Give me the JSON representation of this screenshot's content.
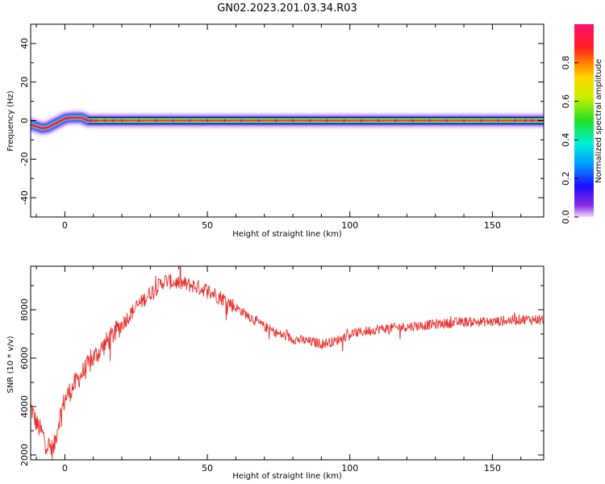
{
  "title": "GN02.2023.201.03.34.R03",
  "chart_data": [
    {
      "type": "heatmap",
      "xlabel": "Height of straight line (km)",
      "ylabel": "Frequency (Hz)",
      "xlim": [
        -12,
        168
      ],
      "ylim": [
        -50,
        50
      ],
      "xticks": [
        0,
        50,
        100,
        150
      ],
      "yticks": [
        -40,
        -20,
        0,
        20,
        40
      ],
      "colorbar": {
        "label": "Normalized spectral amplitude",
        "range": [
          0,
          1
        ],
        "ticks": [
          "0.0",
          "0.2",
          "0.4",
          "0.6",
          "0.8"
        ]
      },
      "ridge": {
        "x": [
          -12,
          -10,
          -8,
          -6,
          -4,
          -2,
          0,
          2,
          4,
          6,
          8,
          10,
          20,
          40,
          60,
          80,
          100,
          120,
          140,
          160,
          168
        ],
        "y": [
          -2,
          -3,
          -4,
          -3.5,
          -2,
          -0.5,
          1,
          1.5,
          1.5,
          1.5,
          0,
          0,
          0,
          0,
          0,
          0,
          0,
          0,
          0,
          0,
          0
        ]
      }
    },
    {
      "type": "line",
      "xlabel": "Height of straight line (km)",
      "ylabel": "SNR (10 * v/v)",
      "xlim": [
        -12,
        168
      ],
      "ylim": [
        1800,
        9800
      ],
      "xticks": [
        0,
        50,
        100,
        150
      ],
      "yticks": [
        2000,
        4000,
        6000,
        8000
      ],
      "color": "#e8312f",
      "x": [
        -12,
        -10,
        -8,
        -6,
        -4,
        -2,
        0,
        5,
        10,
        15,
        20,
        25,
        30,
        35,
        40,
        45,
        50,
        55,
        60,
        65,
        70,
        75,
        80,
        85,
        90,
        95,
        100,
        110,
        120,
        130,
        140,
        150,
        160,
        168
      ],
      "y": [
        4000,
        3300,
        2900,
        2400,
        2200,
        3500,
        4300,
        5200,
        6000,
        6700,
        7400,
        8100,
        8700,
        9200,
        9100,
        9000,
        8800,
        8500,
        8100,
        7700,
        7300,
        7000,
        6800,
        6700,
        6600,
        6700,
        7000,
        7200,
        7300,
        7400,
        7500,
        7500,
        7600,
        7600
      ]
    }
  ]
}
